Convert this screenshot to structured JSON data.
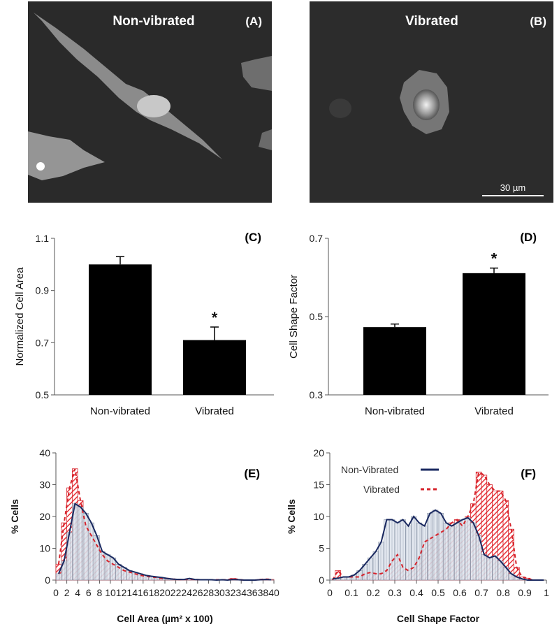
{
  "colors": {
    "bar": "#000000",
    "nonvib_fill": "#cfd8e4",
    "nonvib_line": "#1a2960",
    "vib_fill": "#e8333a",
    "vib_line": "#d6232b",
    "micrograph_bg": "#2a2a2a"
  },
  "panel_a": {
    "title": "Non-vibrated",
    "letter": "(A)"
  },
  "panel_b": {
    "title": "Vibrated",
    "letter": "(B)",
    "scale_bar": "30 µm"
  },
  "chart_data": [
    {
      "panel": "(C)",
      "type": "bar",
      "categories": [
        "Non-vibrated",
        "Vibrated"
      ],
      "values": [
        1.0,
        0.71
      ],
      "errors": [
        0.03,
        0.05
      ],
      "significance": [
        "",
        "*"
      ],
      "ylabel": "Normalized Cell Area",
      "ylim": [
        0.5,
        1.1
      ],
      "yticks": [
        "0.5",
        "0.7",
        "0.9",
        "1.1"
      ]
    },
    {
      "panel": "(D)",
      "type": "bar",
      "categories": [
        "Non-vibrated",
        "Vibrated"
      ],
      "values": [
        0.473,
        0.611
      ],
      "errors": [
        0.008,
        0.013
      ],
      "significance": [
        "",
        "*"
      ],
      "ylabel": "Cell Shape Factor",
      "ylim": [
        0.3,
        0.7
      ],
      "yticks": [
        "0.3",
        "0.5",
        "0.7"
      ]
    },
    {
      "panel": "(E)",
      "type": "bar",
      "xlabel": "Cell Area (µm² x 100)",
      "ylabel": "% Cells",
      "xlim": [
        0,
        40
      ],
      "ylim": [
        0,
        40
      ],
      "xticks": [
        "0",
        "2",
        "4",
        "6",
        "8",
        "10",
        "12",
        "14",
        "16",
        "18",
        "20",
        "22",
        "24",
        "26",
        "28",
        "30",
        "32",
        "34",
        "36",
        "38",
        "40"
      ],
      "yticks": [
        "0",
        "10",
        "20",
        "30",
        "40"
      ],
      "bin_width": 1,
      "x": [
        1,
        2,
        3,
        4,
        5,
        6,
        7,
        8,
        9,
        10,
        11,
        12,
        13,
        14,
        15,
        16,
        17,
        18,
        19,
        20,
        21,
        22,
        23,
        24,
        25,
        26,
        27,
        28,
        29,
        30,
        31,
        32,
        33,
        34,
        35,
        36,
        37,
        38,
        39,
        40
      ],
      "series": [
        {
          "values": [
            2,
            6,
            15,
            24,
            23,
            21,
            18,
            14,
            9,
            8,
            7,
            5,
            4,
            3,
            2.5,
            2,
            1.5,
            1.2,
            1,
            0.8,
            0.5,
            0.3,
            0.2,
            0.2,
            0.5,
            0.2,
            0.1,
            0.1,
            0.1,
            0,
            0.1,
            0,
            0.2,
            0.1,
            0,
            0,
            0,
            0.1,
            0.2,
            0.1
          ]
        },
        {
          "values": [
            5,
            18,
            29,
            35,
            25,
            17,
            14,
            11,
            8,
            6,
            5,
            4,
            3,
            2.5,
            2,
            1.5,
            1.2,
            1,
            0.8,
            0.5,
            0.5,
            0.3,
            0.2,
            0.2,
            0.3,
            0.2,
            0.1,
            0.1,
            0.1,
            0.1,
            0.1,
            0.1,
            0.5,
            0.2,
            0,
            0,
            0,
            0.2,
            0.3,
            0.2
          ]
        }
      ]
    },
    {
      "panel": "(F)",
      "type": "bar",
      "xlabel": "Cell Shape Factor",
      "ylabel": "% Cells",
      "xlim": [
        0,
        1
      ],
      "ylim": [
        0,
        20
      ],
      "xticks": [
        "0",
        "0.1",
        "0.2",
        "0.3",
        "0.4",
        "0.5",
        "0.6",
        "0.7",
        "0.8",
        "0.9",
        "1"
      ],
      "yticks": [
        "0",
        "5",
        "10",
        "15",
        "20"
      ],
      "bin_width": 0.025,
      "x": [
        0.025,
        0.05,
        0.075,
        0.1,
        0.125,
        0.15,
        0.175,
        0.2,
        0.225,
        0.25,
        0.275,
        0.3,
        0.325,
        0.35,
        0.375,
        0.4,
        0.425,
        0.45,
        0.475,
        0.5,
        0.525,
        0.55,
        0.575,
        0.6,
        0.625,
        0.65,
        0.675,
        0.7,
        0.725,
        0.75,
        0.775,
        0.8,
        0.825,
        0.85,
        0.875,
        0.9,
        0.925,
        0.95,
        0.975,
        1.0
      ],
      "series": [
        {
          "name": "Non-Vibrated",
          "values": [
            0.2,
            0.3,
            0.5,
            0.5,
            0.8,
            1.5,
            2.5,
            3.5,
            4.5,
            6,
            9.5,
            9.5,
            9,
            9.5,
            8.5,
            10,
            9,
            8.5,
            10.5,
            11,
            10.5,
            9,
            8.5,
            9,
            9.5,
            9.8,
            9,
            7,
            4,
            3.5,
            3.8,
            3,
            2,
            1,
            0.5,
            0.2,
            0,
            0,
            0,
            0
          ]
        },
        {
          "name": "Vibrated",
          "values": [
            0,
            1.5,
            0.5,
            0.5,
            0.5,
            0.5,
            1,
            1.2,
            1,
            1,
            1.5,
            3,
            4,
            2,
            1.5,
            2,
            3.5,
            6,
            6.5,
            7,
            7.5,
            8,
            9,
            9.5,
            8.5,
            10,
            12,
            17,
            16.5,
            15,
            14,
            14,
            12.5,
            8,
            2,
            0.5,
            0.3,
            0,
            0,
            0
          ]
        }
      ]
    }
  ]
}
